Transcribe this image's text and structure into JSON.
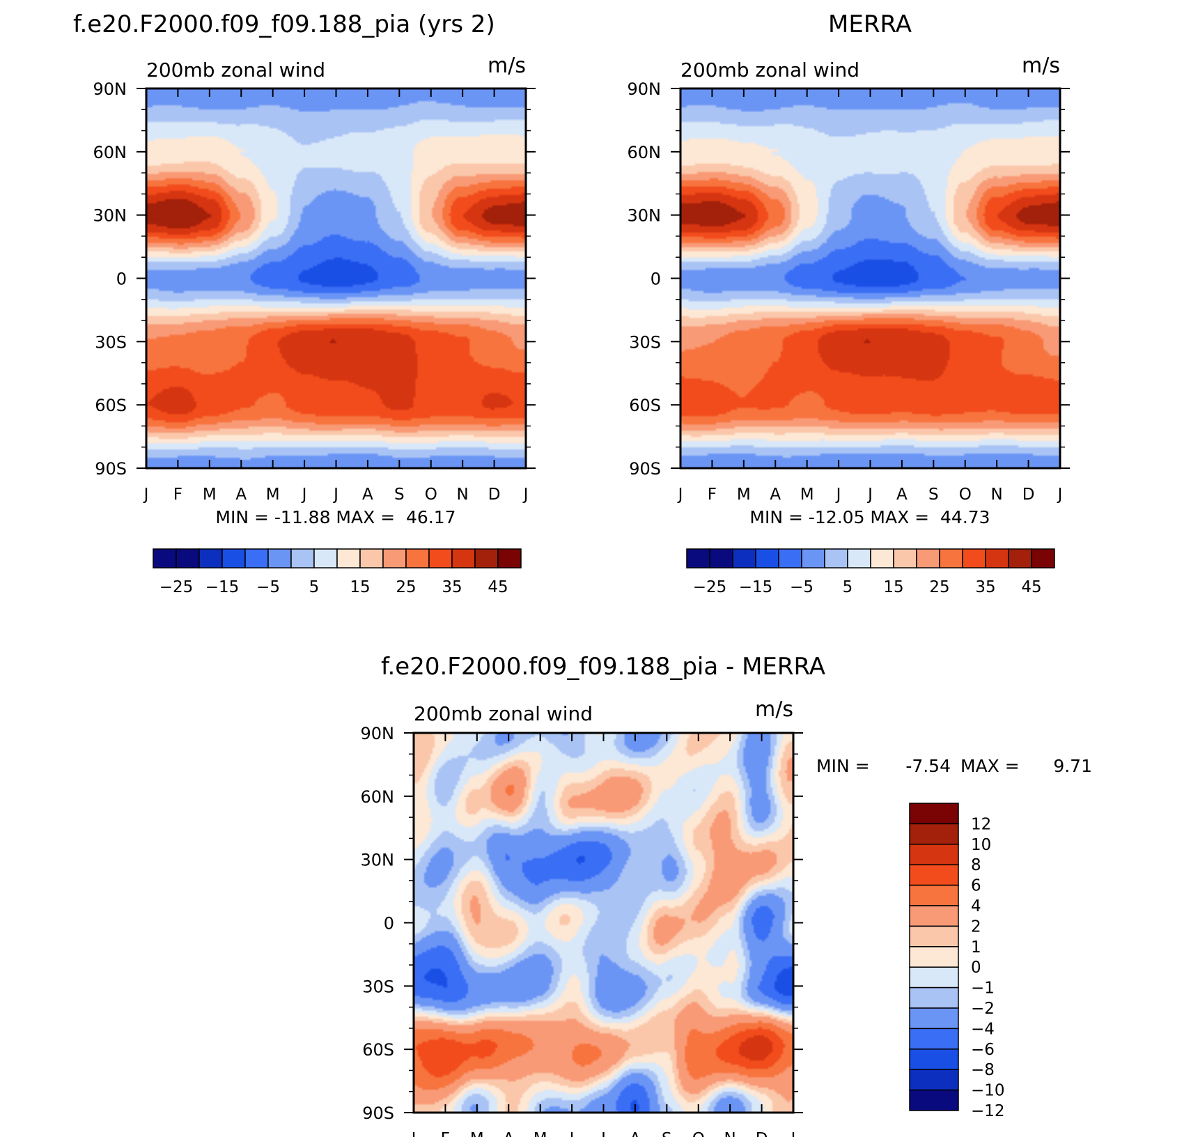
{
  "colors": {
    "abs": [
      "#0a0a7f",
      "#0c2fbf",
      "#1a4fe6",
      "#3a6ef5",
      "#6b95f5",
      "#a9c3f5",
      "#d9e8f8",
      "#fde7d5",
      "#fbc7aa",
      "#f99a77",
      "#f7743f",
      "#f24c1c",
      "#d63511",
      "#a3200a",
      "#7a0303"
    ],
    "diff": [
      "#0a0a7f",
      "#0c2fbf",
      "#1a4fe6",
      "#3a6ef5",
      "#6b95f5",
      "#a9c3f5",
      "#d9e8f8",
      "#fde7d5",
      "#fbc7aa",
      "#f99a77",
      "#f7743f",
      "#f24c1c",
      "#d63511",
      "#a3200a",
      "#7a0303"
    ]
  },
  "common": {
    "months": [
      "J",
      "F",
      "M",
      "A",
      "M",
      "J",
      "J",
      "A",
      "S",
      "O",
      "N",
      "D",
      "J"
    ],
    "lat_labels": [
      "90N",
      "60N",
      "30N",
      "0",
      "30S",
      "60S",
      "90S"
    ],
    "abs_colorbar_labels": [
      "-25",
      "-15",
      "-5",
      "5",
      "15",
      "25",
      "35",
      "45"
    ],
    "diff_colorbar_labels": [
      "12",
      "10",
      "8",
      "6",
      "4",
      "2",
      "1",
      "0",
      "-1",
      "-2",
      "-4",
      "-6",
      "-8",
      "-10",
      "-12"
    ]
  },
  "chart_data": [
    {
      "type": "heatmap",
      "title": "f.e20.F2000.f09_f09.188_pia (yrs 2)",
      "left_label": "200mb zonal wind",
      "right_label": "m/s",
      "stats": "MIN = -11.88 MAX =  46.17",
      "min": -11.88,
      "max": 46.17,
      "x": [
        "J",
        "F",
        "M",
        "A",
        "M",
        "J",
        "J",
        "A",
        "S",
        "O",
        "N",
        "D",
        "J"
      ],
      "y": [
        "90N",
        "60N",
        "30N",
        "0",
        "30S",
        "60S",
        "90S"
      ],
      "levels": [
        -30,
        -25,
        -20,
        -15,
        -10,
        -5,
        0,
        5,
        10,
        15,
        20,
        25,
        30,
        35,
        40,
        45
      ],
      "values_by_latitude": [
        [
          -3,
          -3,
          -3,
          -3,
          -2,
          -2,
          -2,
          -2,
          -2,
          -2,
          -2,
          -3,
          -3
        ],
        [
          12,
          12,
          13,
          10,
          8,
          6,
          6,
          7,
          9,
          12,
          13,
          13,
          12
        ],
        [
          43,
          46,
          40,
          25,
          10,
          0,
          -3,
          -2,
          5,
          20,
          35,
          42,
          43
        ],
        [
          -2,
          -3,
          -3,
          -4,
          -8,
          -11,
          -12,
          -11,
          -8,
          -4,
          -3,
          -2,
          -2
        ],
        [
          25,
          26,
          27,
          30,
          35,
          38,
          40,
          40,
          37,
          33,
          30,
          27,
          25
        ],
        [
          35,
          38,
          33,
          30,
          30,
          32,
          33,
          34,
          36,
          34,
          33,
          35,
          35
        ],
        [
          -3,
          -3,
          -2,
          -2,
          -3,
          -3,
          -4,
          -4,
          -3,
          -3,
          -3,
          -3,
          -3
        ]
      ]
    },
    {
      "type": "heatmap",
      "title": "MERRA",
      "left_label": "200mb zonal wind",
      "right_label": "m/s",
      "stats": "MIN = -12.05 MAX =  44.73",
      "min": -12.05,
      "max": 44.73,
      "x": [
        "J",
        "F",
        "M",
        "A",
        "M",
        "J",
        "J",
        "A",
        "S",
        "O",
        "N",
        "D",
        "J"
      ],
      "y": [
        "90N",
        "60N",
        "30N",
        "0",
        "30S",
        "60S",
        "90S"
      ],
      "levels": [
        -30,
        -25,
        -20,
        -15,
        -10,
        -5,
        0,
        5,
        10,
        15,
        20,
        25,
        30,
        35,
        40,
        45
      ],
      "values_by_latitude": [
        [
          -3,
          -3,
          -3,
          -3,
          -2,
          -2,
          -2,
          -2,
          -2,
          -2,
          -3,
          -3,
          -3
        ],
        [
          12,
          12,
          11,
          10,
          8,
          7,
          7,
          7,
          8,
          10,
          12,
          12,
          12
        ],
        [
          43,
          44,
          40,
          28,
          12,
          2,
          -2,
          -1,
          5,
          20,
          35,
          42,
          43
        ],
        [
          -2,
          -3,
          -3,
          -4,
          -8,
          -11,
          -12,
          -12,
          -9,
          -5,
          -3,
          -2,
          -2
        ],
        [
          24,
          25,
          27,
          30,
          34,
          38,
          40,
          40,
          37,
          33,
          30,
          27,
          24
        ],
        [
          33,
          33,
          30,
          30,
          30,
          31,
          32,
          32,
          33,
          32,
          31,
          32,
          33
        ],
        [
          -4,
          -4,
          -3,
          -3,
          -3,
          -4,
          -4,
          -4,
          -4,
          -4,
          -4,
          -4,
          -4
        ]
      ]
    },
    {
      "type": "heatmap",
      "title": "f.e20.F2000.f09_f09.188_pia - MERRA",
      "left_label": "200mb zonal wind",
      "right_label": "m/s",
      "stats_min_label": "MIN =",
      "stats_min_value": "-7.54",
      "stats_max_label": "MAX =",
      "stats_max_value": "9.71",
      "min": -7.54,
      "max": 9.71,
      "x": [
        "J",
        "F",
        "M",
        "A",
        "M",
        "J",
        "J",
        "A",
        "S",
        "O",
        "N",
        "D",
        "J"
      ],
      "y": [
        "90N",
        "60N",
        "30N",
        "0",
        "30S",
        "60S",
        "90S"
      ],
      "levels": [
        -14,
        -12,
        -10,
        -8,
        -6,
        -4,
        -2,
        -1,
        0,
        1,
        2,
        4,
        6,
        8,
        10,
        12
      ],
      "values_by_latitude": [
        [
          1,
          -1,
          0,
          -2,
          -1,
          -2,
          -1,
          -2,
          -1,
          0,
          1,
          -3,
          1
        ],
        [
          2,
          -2,
          1,
          4,
          -1,
          3,
          2,
          2,
          1,
          -1,
          1,
          -3,
          1
        ],
        [
          0,
          -2,
          -1,
          -4,
          -5,
          -5,
          -4,
          -3,
          -2,
          1,
          3,
          3,
          0
        ],
        [
          -1,
          -1,
          2,
          2,
          -1,
          0,
          0,
          -1,
          2,
          2,
          0,
          -4,
          -1
        ],
        [
          -6,
          -6,
          -4,
          -3,
          -2,
          -1,
          -3,
          -2,
          -1,
          1,
          -1,
          -4,
          -6
        ],
        [
          6,
          8,
          6,
          4,
          5,
          4,
          3,
          2,
          1,
          6,
          7,
          8,
          6
        ],
        [
          1,
          1,
          -1,
          0,
          -2,
          -1,
          -3,
          -6,
          -2,
          0,
          -2,
          -1,
          1
        ]
      ]
    }
  ]
}
